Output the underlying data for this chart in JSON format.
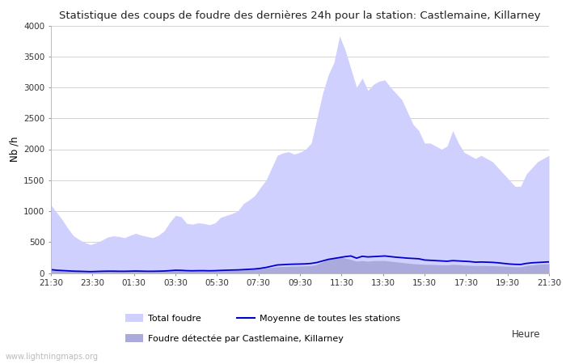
{
  "title": "Statistique des coups de foudre des dernières 24h pour la station: Castlemaine, Killarney",
  "ylabel": "Nb /h",
  "xlabel_label": "Heure",
  "xlim_labels": [
    "21:30",
    "23:30",
    "01:30",
    "03:30",
    "05:30",
    "07:30",
    "09:30",
    "11:30",
    "13:30",
    "15:30",
    "17:30",
    "19:30",
    "21:30"
  ],
  "ylim": [
    0,
    4000
  ],
  "yticks": [
    0,
    500,
    1000,
    1500,
    2000,
    2500,
    3000,
    3500,
    4000
  ],
  "bg_color": "#ffffff",
  "plot_bg_color": "#ffffff",
  "grid_color": "#cccccc",
  "total_foudre_color": "#d0d0ff",
  "local_foudre_color": "#aaaadd",
  "moyenne_color": "#0000cc",
  "watermark": "www.lightningmaps.org",
  "legend": {
    "total_foudre": "Total foudre",
    "moyenne": "Moyenne de toutes les stations",
    "local": "Foudre détectée par Castlemaine, Killarney"
  },
  "total_foudre": [
    1100,
    980,
    860,
    720,
    600,
    540,
    490,
    460,
    490,
    530,
    580,
    600,
    590,
    570,
    610,
    640,
    610,
    590,
    570,
    610,
    680,
    820,
    930,
    910,
    800,
    790,
    810,
    800,
    780,
    810,
    900,
    930,
    960,
    1000,
    1120,
    1180,
    1250,
    1380,
    1500,
    1700,
    1900,
    1940,
    1960,
    1920,
    1950,
    2000,
    2100,
    2500,
    2900,
    3200,
    3400,
    3830,
    3600,
    3300,
    3000,
    3150,
    2950,
    3050,
    3100,
    3120,
    3000,
    2900,
    2800,
    2600,
    2400,
    2300,
    2100,
    2100,
    2050,
    2000,
    2050,
    2300,
    2100,
    1950,
    1900,
    1850,
    1900,
    1850,
    1800,
    1700,
    1600,
    1500,
    1400,
    1400,
    1600,
    1700,
    1800,
    1850,
    1900
  ],
  "local_foudre": [
    50,
    40,
    35,
    30,
    25,
    25,
    20,
    18,
    20,
    22,
    25,
    25,
    22,
    22,
    25,
    28,
    25,
    22,
    22,
    25,
    28,
    35,
    40,
    38,
    35,
    33,
    35,
    35,
    33,
    35,
    38,
    40,
    42,
    45,
    50,
    55,
    60,
    70,
    80,
    90,
    100,
    105,
    108,
    110,
    112,
    115,
    120,
    140,
    180,
    220,
    240,
    260,
    240,
    220,
    190,
    200,
    190,
    200,
    200,
    200,
    190,
    180,
    170,
    160,
    150,
    145,
    140,
    138,
    135,
    132,
    130,
    140,
    135,
    128,
    125,
    120,
    122,
    120,
    118,
    115,
    110,
    105,
    100,
    100,
    120,
    130,
    140,
    145,
    150
  ],
  "moyenne": [
    55,
    45,
    40,
    35,
    30,
    28,
    25,
    22,
    25,
    28,
    30,
    30,
    28,
    28,
    30,
    32,
    30,
    28,
    28,
    30,
    32,
    38,
    45,
    43,
    38,
    36,
    38,
    38,
    36,
    38,
    42,
    45,
    48,
    50,
    55,
    60,
    65,
    75,
    90,
    110,
    130,
    135,
    140,
    143,
    145,
    148,
    155,
    170,
    195,
    220,
    235,
    250,
    265,
    275,
    240,
    270,
    260,
    265,
    270,
    275,
    265,
    255,
    248,
    240,
    235,
    230,
    210,
    205,
    200,
    195,
    190,
    200,
    195,
    190,
    185,
    175,
    178,
    175,
    172,
    165,
    155,
    145,
    140,
    138,
    155,
    165,
    170,
    175,
    180
  ]
}
